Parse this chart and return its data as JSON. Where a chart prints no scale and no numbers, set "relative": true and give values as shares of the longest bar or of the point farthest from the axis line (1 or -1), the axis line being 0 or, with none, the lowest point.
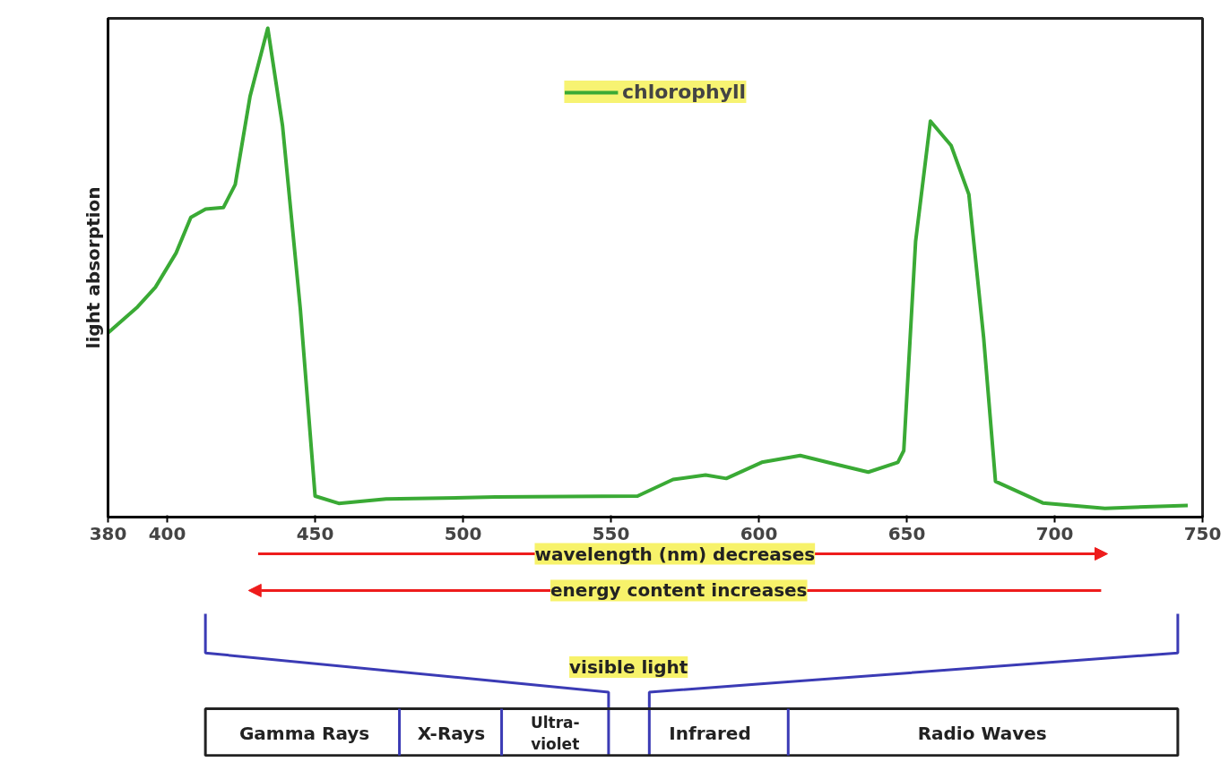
{
  "chart_data": {
    "type": "line",
    "relative": true,
    "ylabel": "light absorption",
    "x": [
      380,
      390,
      396,
      403,
      408,
      413,
      419,
      423,
      428,
      434,
      439,
      445,
      450,
      458,
      474,
      511,
      559,
      571,
      582,
      589,
      601,
      614,
      626,
      637,
      647,
      649,
      653,
      658,
      665,
      671,
      676,
      680,
      696,
      717,
      745
    ],
    "xlim": [
      380,
      750
    ],
    "xticks": [
      380,
      400,
      450,
      500,
      550,
      600,
      650,
      700,
      750
    ],
    "series": [
      {
        "name": "chlorophyll",
        "color": "#3aaa35",
        "values": [
          0.377,
          0.43,
          0.47,
          0.54,
          0.613,
          0.63,
          0.633,
          0.68,
          0.86,
          1.0,
          0.8,
          0.426,
          0.043,
          0.028,
          0.037,
          0.041,
          0.043,
          0.077,
          0.086,
          0.079,
          0.112,
          0.126,
          0.108,
          0.092,
          0.112,
          0.136,
          0.564,
          0.81,
          0.76,
          0.66,
          0.367,
          0.073,
          0.029,
          0.018,
          0.024
        ]
      }
    ],
    "legend": "top",
    "grid": false,
    "marker": "none",
    "line_style": "solid",
    "annotations": [
      "wavelength (nm) decreases",
      "energy content increases",
      "visible light",
      "Gamma Rays",
      "X-Rays",
      "Ultra-\nviolet",
      "Infrared",
      "Radio Waves"
    ]
  }
}
